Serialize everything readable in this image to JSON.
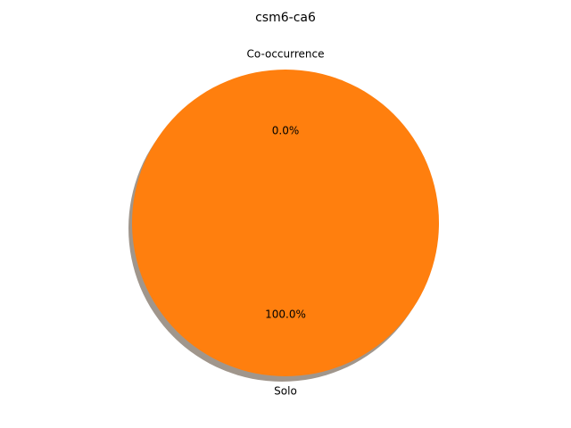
{
  "chart_data": {
    "type": "pie",
    "title": "csm6-ca6",
    "slices": [
      {
        "label": "Co-occurrence",
        "value": 0.0,
        "pct_label": "0.0%",
        "color": "#1f77b4"
      },
      {
        "label": "Solo",
        "value": 100.0,
        "pct_label": "100.0%",
        "color": "#ff7f0e"
      }
    ],
    "start_angle_deg": 90,
    "shadow": true,
    "shadow_color": "#a0968c"
  }
}
